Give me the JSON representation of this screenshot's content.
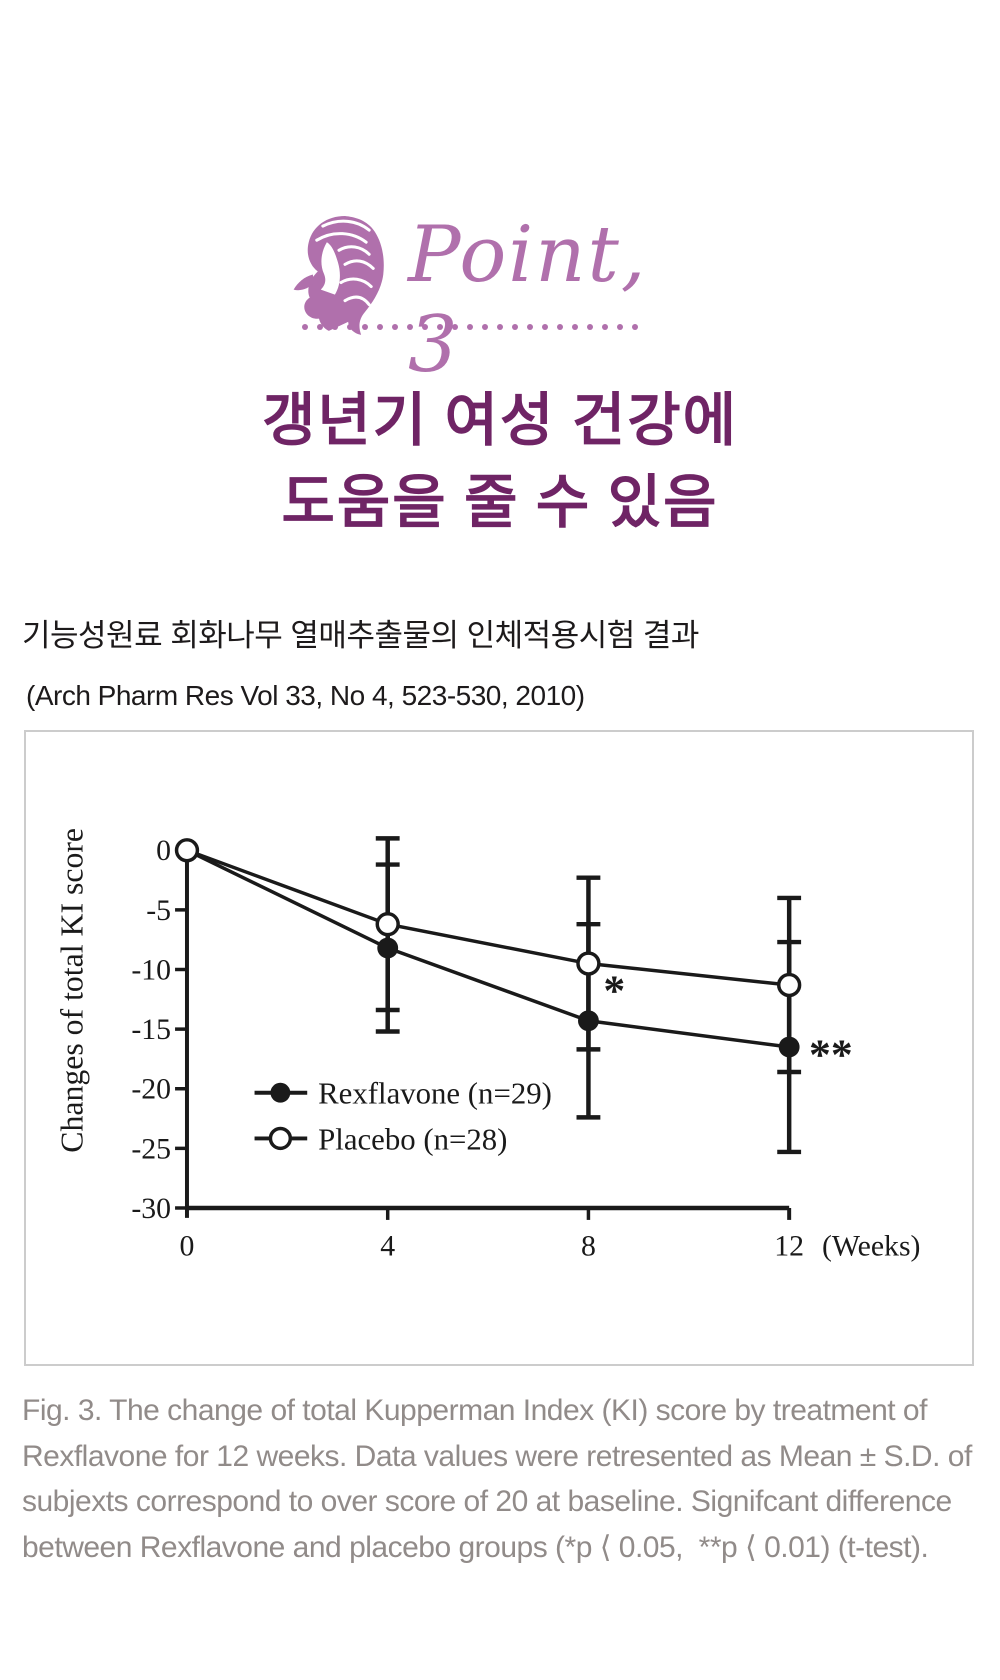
{
  "header": {
    "icon": "woman-hair-icon",
    "point_label": "Point, 3",
    "divider_dot_count": 23
  },
  "title": {
    "line1": "갱년기 여성 건강에",
    "line2": "도움을 줄 수 있음"
  },
  "study": {
    "heading": "기능성원료 회화나무 열매추출물의 인체적용시험 결과",
    "citation": "(Arch Pharm Res Vol 33, No 4, 523-530, 2010)"
  },
  "chart_data": {
    "type": "line",
    "x": [
      0,
      4,
      8,
      12
    ],
    "xticklabels": [
      "0",
      "4",
      "8",
      "12"
    ],
    "xlabel": "(Weeks)",
    "ylabel": "Changes of total KI score",
    "yticks": [
      0,
      -5,
      -10,
      -15,
      -20,
      -25,
      -30
    ],
    "ylim": [
      -30,
      2
    ],
    "xlim": [
      0,
      12
    ],
    "grid": false,
    "legend_position": "inside-lower-left",
    "series": [
      {
        "name": "Rexflavone (n=29)",
        "marker": "filled-circle",
        "color": "#1a1a1a",
        "values": [
          0,
          -8.2,
          -14.3,
          -16.5
        ],
        "sd": [
          0,
          7.0,
          8.1,
          8.8
        ]
      },
      {
        "name": "Placebo (n=28)",
        "marker": "open-circle",
        "color": "#1a1a1a",
        "values": [
          0,
          -6.2,
          -9.5,
          -11.3
        ],
        "sd": [
          0,
          7.2,
          7.2,
          7.3
        ]
      }
    ],
    "annotations": [
      {
        "text": "*",
        "week": 8,
        "series": 0
      },
      {
        "text": "**",
        "week": 12,
        "series": 0
      }
    ]
  },
  "caption": {
    "lines": [
      "Fig. 3. The change of total Kupperman Index (KI) score by treatment of",
      "Rexflavone for 12 weeks. Data values were retresented as Mean ± S.D. of",
      "subjexts correspond to over score of 20 at baseline. Signifcant difference",
      "between Rexflavone and placebo groups (*p ⟨ 0.05,  **p ⟨ 0.01) (t-test)."
    ]
  },
  "colors": {
    "accent_orchid": "#b070ac",
    "title_purple": "#6f2465",
    "chart_ink": "#1a1a1a",
    "caption_gray": "#918b89",
    "panel_border": "#cccccc"
  }
}
